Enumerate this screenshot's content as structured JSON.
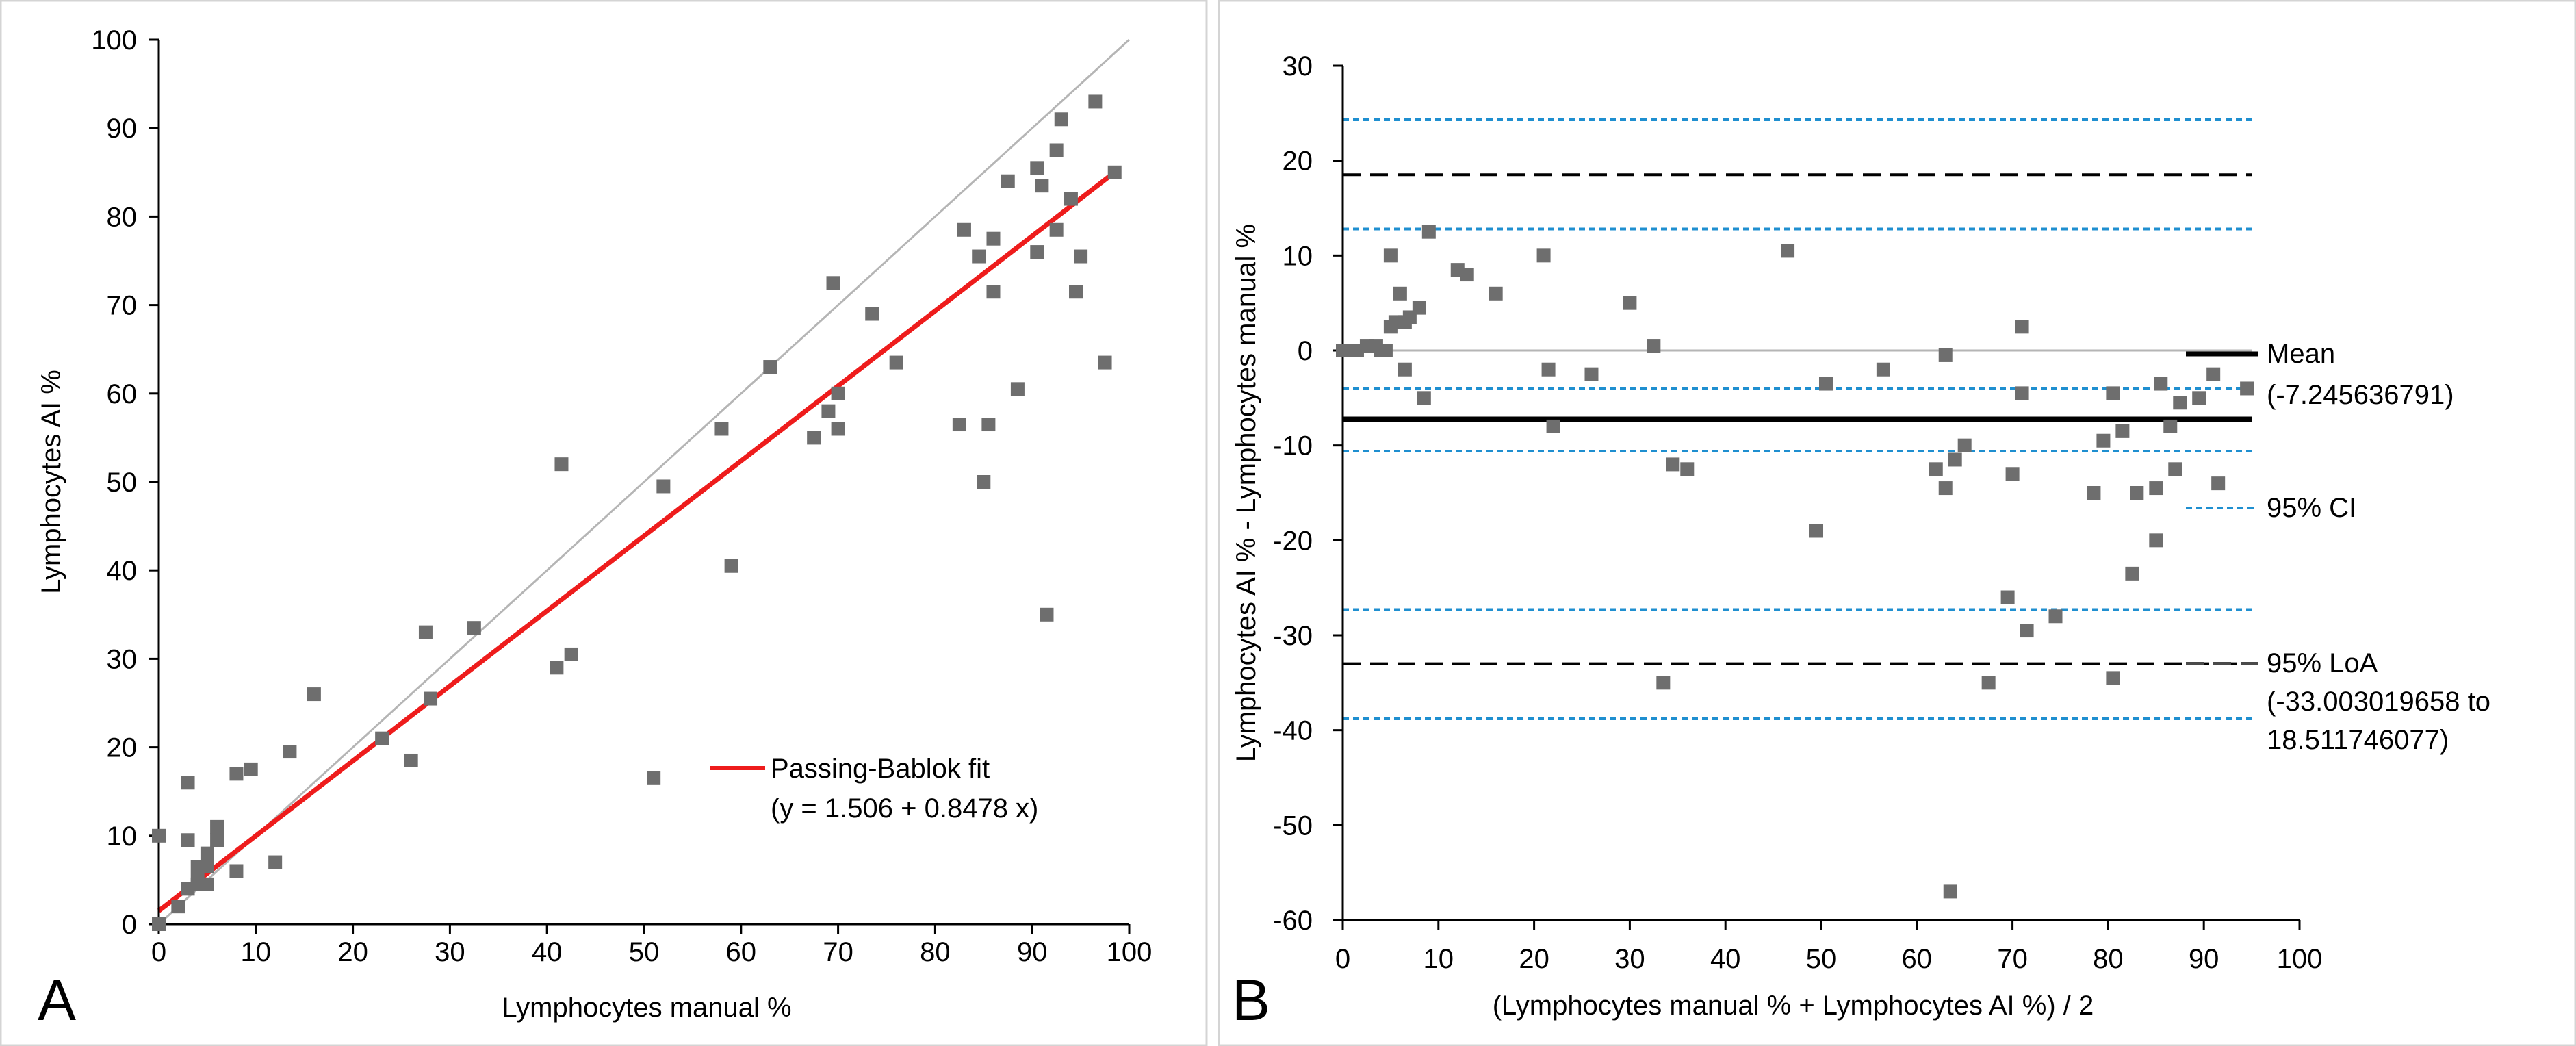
{
  "chart_data": [
    {
      "type": "scatter",
      "panel_label": "A",
      "title": "",
      "xlabel": "Lymphocytes manual %",
      "ylabel": "Lymphocytes AI %",
      "xlim": [
        0,
        100
      ],
      "ylim": [
        0,
        100
      ],
      "xticks": [
        0,
        10,
        20,
        30,
        40,
        50,
        60,
        70,
        80,
        90,
        100
      ],
      "yticks": [
        0,
        10,
        20,
        30,
        40,
        50,
        60,
        70,
        80,
        90,
        100
      ],
      "grid": false,
      "identity_line": {
        "from": [
          0,
          0
        ],
        "to": [
          100,
          100
        ],
        "color": "#b5b5b5"
      },
      "fit_line": {
        "intercept": 1.506,
        "slope": 0.8478,
        "x_range": [
          0,
          99
        ],
        "color": "#ee1c1c"
      },
      "legend": {
        "position": "bottom-right",
        "label": "Passing-Bablok fit",
        "equation": "(y = 1.506 + 0.8478 x)"
      },
      "point_color": "#6e6e6e",
      "points": [
        [
          0,
          0
        ],
        [
          0,
          10
        ],
        [
          2,
          2
        ],
        [
          3,
          4
        ],
        [
          3,
          9.5
        ],
        [
          3,
          16
        ],
        [
          4,
          6.5
        ],
        [
          4,
          5
        ],
        [
          4,
          4.5
        ],
        [
          5,
          6.5
        ],
        [
          5,
          4.5
        ],
        [
          5,
          8
        ],
        [
          6,
          9.5
        ],
        [
          6,
          11
        ],
        [
          8,
          6
        ],
        [
          8,
          17
        ],
        [
          9.5,
          17.5
        ],
        [
          12,
          7
        ],
        [
          13.5,
          19.5
        ],
        [
          16,
          26
        ],
        [
          23,
          21
        ],
        [
          26,
          18.5
        ],
        [
          27.5,
          33
        ],
        [
          28,
          25.5
        ],
        [
          32.5,
          33.5
        ],
        [
          41,
          29
        ],
        [
          41.5,
          52
        ],
        [
          42.5,
          30.5
        ],
        [
          51,
          16.5
        ],
        [
          52,
          49.5
        ],
        [
          58,
          56
        ],
        [
          59,
          40.5
        ],
        [
          63,
          63
        ],
        [
          67.5,
          55
        ],
        [
          69,
          58
        ],
        [
          69.5,
          72.5
        ],
        [
          70,
          56
        ],
        [
          70,
          60
        ],
        [
          73.5,
          69
        ],
        [
          76,
          63.5
        ],
        [
          82.5,
          56.5
        ],
        [
          83,
          78.5
        ],
        [
          84.5,
          75.5
        ],
        [
          85,
          50
        ],
        [
          85.5,
          56.5
        ],
        [
          86,
          71.5
        ],
        [
          86,
          77.5
        ],
        [
          87.5,
          84
        ],
        [
          88.5,
          60.5
        ],
        [
          90.5,
          76
        ],
        [
          90.5,
          85.5
        ],
        [
          91,
          83.5
        ],
        [
          91.5,
          35
        ],
        [
          92.5,
          87.5
        ],
        [
          92.5,
          78.5
        ],
        [
          93,
          91
        ],
        [
          94,
          82
        ],
        [
          94.5,
          71.5
        ],
        [
          95,
          75.5
        ],
        [
          96.5,
          93
        ],
        [
          97.5,
          63.5
        ],
        [
          98.5,
          85
        ]
      ]
    },
    {
      "type": "scatter",
      "panel_label": "B",
      "title": "",
      "xlabel": "(Lymphocytes manual % + Lymphocytes AI %) / 2",
      "ylabel": "Lymphocytes AI % - Lymphocytes manual %",
      "xlim": [
        0,
        100
      ],
      "ylim": [
        -60,
        30
      ],
      "xticks": [
        0,
        10,
        20,
        30,
        40,
        50,
        60,
        70,
        80,
        90,
        100
      ],
      "yticks": [
        -60,
        -50,
        -40,
        -30,
        -20,
        -10,
        0,
        10,
        20,
        30
      ],
      "grid": false,
      "zero_line": {
        "y": 0,
        "x_range": [
          0,
          95
        ],
        "color": "#b5b5b5"
      },
      "mean_line": {
        "y": -7.245636791,
        "x_range": [
          0,
          95
        ],
        "color": "#000000"
      },
      "loa_lines": [
        {
          "y": 18.511746077,
          "x_range": [
            0,
            95
          ],
          "color": "#000000"
        },
        {
          "y": -33.003019658,
          "x_range": [
            0,
            95
          ],
          "color": "#000000"
        }
      ],
      "ci_lines": [
        {
          "y": 24.3,
          "x_range": [
            0,
            95
          ],
          "color": "#1f8fd0"
        },
        {
          "y": 12.8,
          "x_range": [
            0,
            95
          ],
          "color": "#1f8fd0"
        },
        {
          "y": -4.0,
          "x_range": [
            0,
            95
          ],
          "color": "#1f8fd0"
        },
        {
          "y": -10.6,
          "x_range": [
            0,
            95
          ],
          "color": "#1f8fd0"
        },
        {
          "y": -27.3,
          "x_range": [
            0,
            95
          ],
          "color": "#1f8fd0"
        },
        {
          "y": -38.8,
          "x_range": [
            0,
            95
          ],
          "color": "#1f8fd0"
        }
      ],
      "legend": {
        "position": "right",
        "mean_label": "Mean",
        "mean_value": "(-7.245636791)",
        "ci_label": "95% CI",
        "loa_label": "95% LoA",
        "loa_value_1": "(-33.003019658 to",
        "loa_value_2": "18.511746077)"
      },
      "point_color": "#6e6e6e",
      "points": [
        [
          0,
          0
        ],
        [
          1.5,
          0
        ],
        [
          2.5,
          0.5
        ],
        [
          3.5,
          0.5
        ],
        [
          4,
          0
        ],
        [
          4.5,
          0
        ],
        [
          5,
          2.5
        ],
        [
          5,
          10
        ],
        [
          5.5,
          3
        ],
        [
          6,
          6
        ],
        [
          6.5,
          -2
        ],
        [
          6.5,
          3
        ],
        [
          7,
          3.5
        ],
        [
          8,
          4.5
        ],
        [
          8.5,
          -5
        ],
        [
          9,
          12.5
        ],
        [
          12,
          8.5
        ],
        [
          13,
          8
        ],
        [
          16,
          6
        ],
        [
          21,
          10
        ],
        [
          21.5,
          -2
        ],
        [
          22,
          -8
        ],
        [
          26,
          -2.5
        ],
        [
          30,
          5
        ],
        [
          32.5,
          0.5
        ],
        [
          33.5,
          -35
        ],
        [
          34.5,
          -12
        ],
        [
          36,
          -12.5
        ],
        [
          46.5,
          10.5
        ],
        [
          49.5,
          -19
        ],
        [
          50.5,
          -3.5
        ],
        [
          56.5,
          -2
        ],
        [
          62,
          -12.5
        ],
        [
          63,
          -14.5
        ],
        [
          63,
          -0.5
        ],
        [
          63.5,
          -57
        ],
        [
          64,
          -11.5
        ],
        [
          65,
          -10
        ],
        [
          67.5,
          -35
        ],
        [
          69.5,
          -26
        ],
        [
          70,
          -13
        ],
        [
          71,
          2.5
        ],
        [
          71,
          -4.5
        ],
        [
          71.5,
          -29.5
        ],
        [
          74.5,
          -28
        ],
        [
          78.5,
          -15
        ],
        [
          79.5,
          -9.5
        ],
        [
          80.5,
          -4.5
        ],
        [
          80.5,
          -34.5
        ],
        [
          81.5,
          -8.5
        ],
        [
          82.5,
          -23.5
        ],
        [
          83,
          -15
        ],
        [
          85,
          -14.5
        ],
        [
          85,
          -20
        ],
        [
          85.5,
          -3.5
        ],
        [
          86.5,
          -8
        ],
        [
          87,
          -12.5
        ],
        [
          87.5,
          -5.5
        ],
        [
          89.5,
          -5
        ],
        [
          91,
          -2.5
        ],
        [
          91.5,
          -14
        ],
        [
          94.5,
          -4
        ]
      ]
    }
  ]
}
